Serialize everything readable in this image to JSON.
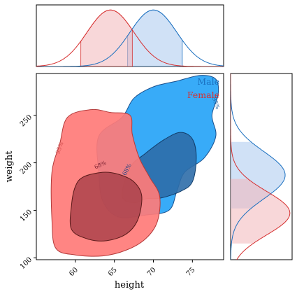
{
  "chart_data": {
    "type": "joint-kde",
    "xlabel": "height",
    "ylabel": "weight",
    "xlim": [
      55,
      79
    ],
    "ylim": [
      98,
      294
    ],
    "xticks": [
      60,
      65,
      70,
      75
    ],
    "yticks": [
      100,
      150,
      200,
      250
    ],
    "legend_placement": "top-right",
    "series": [
      {
        "name": "Male",
        "color": "#1a6fbf",
        "fill_outer": "#38abf8",
        "fill_inner": "#2e6da8",
        "x_mean": 70,
        "x_sd": 3,
        "x_interval": [
          66.7,
          73.7
        ],
        "y_interval": [
          152,
          222
        ],
        "contour_95": [
          [
            63.0,
            228
          ],
          [
            66.0,
            248
          ],
          [
            67.5,
            268
          ],
          [
            70.0,
            280
          ],
          [
            73.0,
            286
          ],
          [
            76.0,
            292
          ],
          [
            78.0,
            288
          ],
          [
            78.3,
            272
          ],
          [
            77.5,
            250
          ],
          [
            78.0,
            228
          ],
          [
            76.5,
            205
          ],
          [
            74.0,
            190
          ],
          [
            73.0,
            170
          ],
          [
            72.0,
            150
          ],
          [
            69.0,
            145
          ],
          [
            65.5,
            143
          ],
          [
            63.5,
            160
          ],
          [
            63.0,
            190
          ]
        ],
        "contour_68": [
          [
            66.0,
            165
          ],
          [
            67.0,
            195
          ],
          [
            69.0,
            210
          ],
          [
            71.5,
            225
          ],
          [
            73.5,
            232
          ],
          [
            75.0,
            225
          ],
          [
            75.5,
            205
          ],
          [
            75.0,
            180
          ],
          [
            73.5,
            170
          ],
          [
            71.0,
            163
          ],
          [
            69.0,
            162
          ],
          [
            67.5,
            158
          ]
        ],
        "contour_labels": [
          "95%",
          "68%"
        ]
      },
      {
        "name": "Female",
        "color": "#d62f2f",
        "fill_outer": "#ff7b78",
        "fill_inner": "#9e3743",
        "x_mean": 64.5,
        "x_sd": 3,
        "x_interval": [
          60.7,
          67.3
        ],
        "y_interval": [
          115,
          183
        ],
        "contour_95": [
          [
            57.0,
            190
          ],
          [
            58.0,
            220
          ],
          [
            59.0,
            248
          ],
          [
            62.0,
            256
          ],
          [
            64.5,
            253
          ],
          [
            67.0,
            250
          ],
          [
            67.3,
            230
          ],
          [
            68.2,
            205
          ],
          [
            69.5,
            185
          ],
          [
            70.8,
            165
          ],
          [
            70.5,
            138
          ],
          [
            69.0,
            120
          ],
          [
            66.5,
            108
          ],
          [
            63.5,
            102
          ],
          [
            60.0,
            103
          ],
          [
            57.5,
            110
          ],
          [
            57.0,
            140
          ]
        ],
        "contour_68": [
          [
            61.0,
            185
          ],
          [
            63.5,
            190
          ],
          [
            65.5,
            188
          ],
          [
            67.5,
            180
          ],
          [
            68.5,
            165
          ],
          [
            68.0,
            140
          ],
          [
            66.5,
            125
          ],
          [
            64.0,
            118
          ],
          [
            61.5,
            120
          ],
          [
            59.5,
            130
          ],
          [
            59.5,
            155
          ],
          [
            60.0,
            175
          ]
        ],
        "contour_labels": [
          "95%",
          "68%"
        ]
      }
    ],
    "marginal_x": {
      "ylim": [
        0,
        0.145
      ]
    },
    "marginal_y": {
      "xlim": [
        0,
        0.018
      ],
      "densities": [
        {
          "series": "Male",
          "mean": 187,
          "sd": 25
        },
        {
          "series": "Female",
          "mean": 147,
          "sd": 23
        }
      ]
    }
  }
}
